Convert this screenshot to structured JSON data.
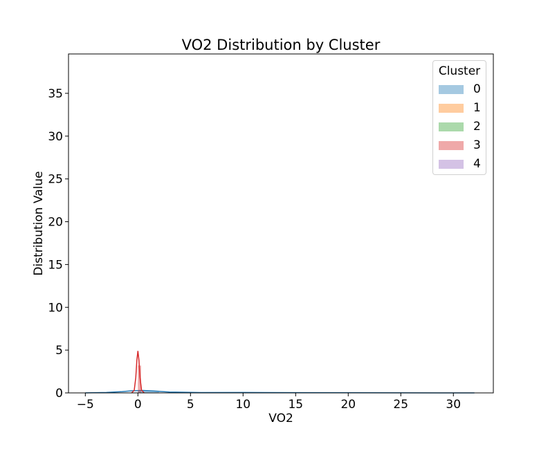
{
  "chart_data": {
    "type": "area",
    "title": "VO2 Distribution by Cluster",
    "xlabel": "VO2",
    "ylabel": "Distribution Value",
    "xlim": [
      -6.6,
      33.8
    ],
    "ylim": [
      0,
      39.6
    ],
    "xticks": [
      -5,
      0,
      5,
      10,
      15,
      20,
      25,
      30
    ],
    "yticks": [
      0,
      5,
      10,
      15,
      20,
      25,
      30,
      35
    ],
    "grid": false,
    "legend": {
      "title": "Cluster",
      "placement": "top-right"
    },
    "series": [
      {
        "name": "0",
        "color": "#1f77b4",
        "hist": [
          {
            "x0": -5,
            "x1": 0,
            "y": 0.05
          },
          {
            "x0": 0,
            "x1": 2,
            "y": 0.25
          },
          {
            "x0": 2,
            "x1": 10,
            "y": 0.03
          },
          {
            "x0": 10,
            "x1": 32,
            "y": 0.02
          }
        ],
        "kde": [
          [
            -5,
            0.0
          ],
          [
            -3,
            0.05
          ],
          [
            -1.5,
            0.15
          ],
          [
            -0.5,
            0.25
          ],
          [
            0.5,
            0.28
          ],
          [
            1.5,
            0.22
          ],
          [
            3,
            0.1
          ],
          [
            6,
            0.04
          ],
          [
            10,
            0.05
          ],
          [
            15,
            0.03
          ],
          [
            20,
            0.02
          ],
          [
            25,
            0.01
          ],
          [
            32,
            0.0
          ]
        ]
      },
      {
        "name": "1",
        "color": "#ff7f0e",
        "hist": [],
        "kde": []
      },
      {
        "name": "2",
        "color": "#2ca02c",
        "hist": [],
        "kde": []
      },
      {
        "name": "3",
        "color": "#d62728",
        "hist": [
          {
            "x0": 0.0,
            "x1": 0.3,
            "y": 3.2
          }
        ],
        "kde": [
          [
            -0.6,
            0.0
          ],
          [
            -0.35,
            0.3
          ],
          [
            -0.2,
            1.8
          ],
          [
            -0.1,
            3.8
          ],
          [
            0.0,
            4.9
          ],
          [
            0.1,
            3.8
          ],
          [
            0.2,
            1.8
          ],
          [
            0.35,
            0.3
          ],
          [
            0.6,
            0.0
          ]
        ]
      },
      {
        "name": "4",
        "color": "#9467bd",
        "hist": [],
        "kde": []
      }
    ]
  }
}
